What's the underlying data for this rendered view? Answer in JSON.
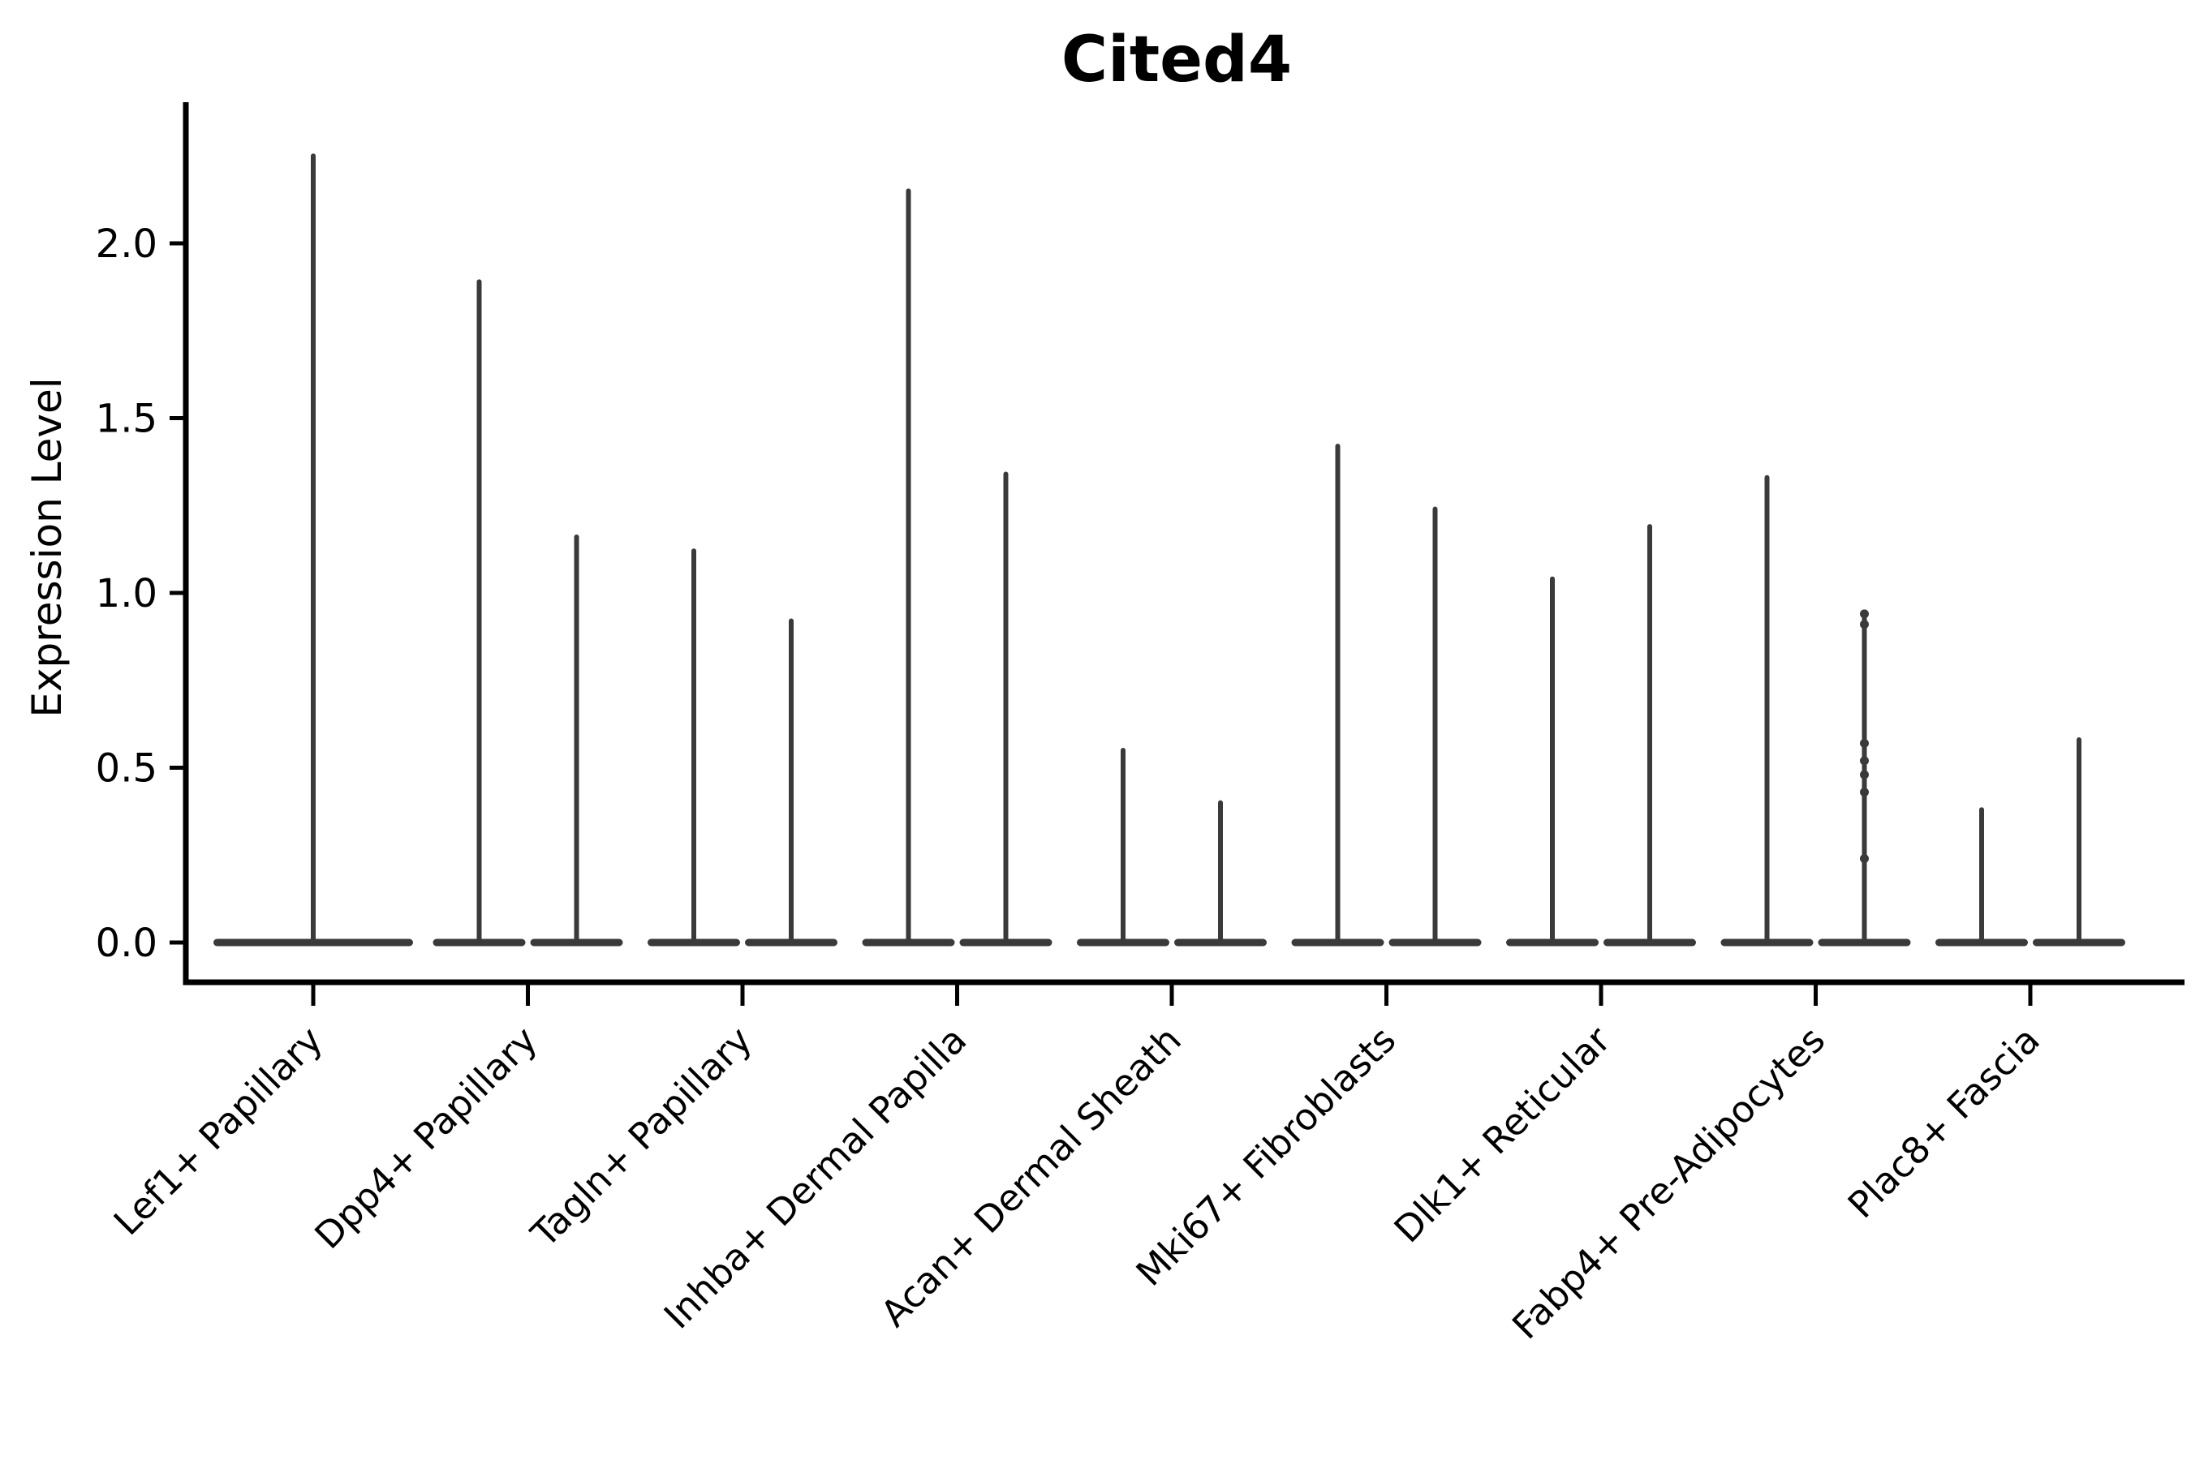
{
  "chart_data": {
    "type": "violin",
    "title": "Cited4",
    "ylabel": "Expression Level",
    "xlabel": "",
    "background_color": "#ffffff",
    "violin_color": "#3a3a3a",
    "axis_color": "#000000",
    "grid": false,
    "legend": null,
    "ylim": [
      -0.11,
      2.4
    ],
    "yticks": [
      {
        "value": 0.0,
        "label": "0.0"
      },
      {
        "value": 0.5,
        "label": "0.5"
      },
      {
        "value": 1.0,
        "label": "1.0"
      },
      {
        "value": 1.5,
        "label": "1.5"
      },
      {
        "value": 2.0,
        "label": "2.0"
      }
    ],
    "categories": [
      "Lef1+ Papillary",
      "Dpp4+ Papillary",
      "Tagln+ Papillary",
      "Inhba+ Dermal Papilla",
      "Acan+ Dermal Sheath",
      "Mki67+ Fibroblasts",
      "Dlk1+ Reticular",
      "Fabp4+ Pre-Adipocytes",
      "Plac8+ Fascia"
    ],
    "violins": [
      {
        "category": "Lef1+ Papillary",
        "spikes": [
          {
            "offset": 0,
            "max": 2.25,
            "base_half_width": 123
          }
        ]
      },
      {
        "category": "Dpp4+ Papillary",
        "spikes": [
          {
            "offset": -60,
            "max": 1.89,
            "base_half_width": 57
          },
          {
            "offset": 60,
            "max": 1.16,
            "base_half_width": 57
          }
        ]
      },
      {
        "category": "Tagln+ Papillary",
        "spikes": [
          {
            "offset": -60,
            "max": 1.12,
            "base_half_width": 57
          },
          {
            "offset": 60,
            "max": 0.92,
            "base_half_width": 57
          }
        ]
      },
      {
        "category": "Inhba+ Dermal Papilla",
        "spikes": [
          {
            "offset": -60,
            "max": 2.15,
            "base_half_width": 57
          },
          {
            "offset": 60,
            "max": 1.34,
            "base_half_width": 57
          }
        ]
      },
      {
        "category": "Acan+ Dermal Sheath",
        "spikes": [
          {
            "offset": -60,
            "max": 0.55,
            "base_half_width": 57
          },
          {
            "offset": 60,
            "max": 0.4,
            "base_half_width": 57
          }
        ]
      },
      {
        "category": "Mki67+ Fibroblasts",
        "spikes": [
          {
            "offset": -60,
            "max": 1.42,
            "base_half_width": 57
          },
          {
            "offset": 60,
            "max": 1.24,
            "base_half_width": 57
          }
        ]
      },
      {
        "category": "Dlk1+ Reticular",
        "spikes": [
          {
            "offset": -60,
            "max": 1.04,
            "base_half_width": 57
          },
          {
            "offset": 60,
            "max": 1.19,
            "base_half_width": 57
          }
        ]
      },
      {
        "category": "Fabp4+ Pre-Adipocytes",
        "spikes": [
          {
            "offset": -60,
            "max": 1.33,
            "base_half_width": 57
          },
          {
            "offset": 60,
            "max": 0.94,
            "base_half_width": 57,
            "points": [
              0.94,
              0.91,
              0.57,
              0.52,
              0.48,
              0.43,
              0.24
            ]
          }
        ]
      },
      {
        "category": "Plac8+ Fascia",
        "spikes": [
          {
            "offset": -60,
            "max": 0.38,
            "base_half_width": 57
          },
          {
            "offset": 60,
            "max": 0.58,
            "base_half_width": 57
          }
        ]
      }
    ],
    "expression_baseline": 0.0
  }
}
